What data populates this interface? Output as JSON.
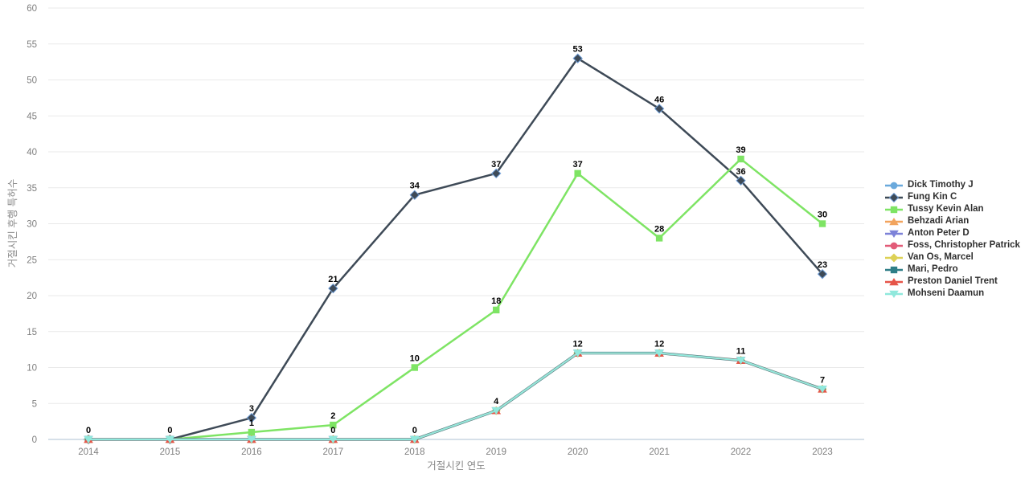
{
  "chart_data": {
    "type": "line",
    "title": "",
    "xlabel": "거절시킨 연도",
    "ylabel": "거절시킨 후행 특허수",
    "x": [
      2014,
      2015,
      2016,
      2017,
      2018,
      2019,
      2020,
      2021,
      2022,
      2023
    ],
    "ylim": [
      0,
      60
    ],
    "ytick_step": 5,
    "grid": true,
    "legend_position": "right",
    "series": [
      {
        "name": "Dick Timothy J",
        "color": "#6aa9dc",
        "marker": "circle",
        "values": [
          0,
          0,
          0,
          0,
          0,
          4,
          12,
          12,
          11,
          7
        ]
      },
      {
        "name": "Fung Kin C",
        "color": "#3e4a57",
        "marker": "diamond",
        "marker_stroke": "#6f9ed8",
        "values": [
          0,
          0,
          3,
          21,
          34,
          37,
          53,
          46,
          36,
          23
        ]
      },
      {
        "name": "Tussy Kevin Alan",
        "color": "#7ee464",
        "marker": "square",
        "values": [
          0,
          0,
          1,
          2,
          10,
          18,
          37,
          28,
          39,
          30
        ]
      },
      {
        "name": "Behzadi Arian",
        "color": "#f2a45e",
        "marker": "triangle-up",
        "values": [
          0,
          0,
          0,
          0,
          0,
          4,
          12,
          12,
          11,
          7
        ]
      },
      {
        "name": "Anton Peter D",
        "color": "#7d82d8",
        "marker": "triangle-down",
        "values": [
          0,
          0,
          0,
          0,
          0,
          4,
          12,
          12,
          11,
          7
        ]
      },
      {
        "name": "Foss, Christopher Patrick",
        "color": "#e25b78",
        "marker": "circle",
        "values": [
          0,
          0,
          0,
          0,
          0,
          4,
          12,
          12,
          11,
          7
        ]
      },
      {
        "name": "Van Os, Marcel",
        "color": "#ddd155",
        "marker": "diamond",
        "values": [
          0,
          0,
          0,
          0,
          0,
          4,
          12,
          12,
          11,
          7
        ]
      },
      {
        "name": "Mari, Pedro",
        "color": "#2e7e87",
        "marker": "square",
        "line_width": 3.4,
        "values": [
          0,
          0,
          0,
          0,
          0,
          4,
          12,
          12,
          11,
          7
        ]
      },
      {
        "name": "Preston Daniel Trent",
        "color": "#e65549",
        "marker": "triangle-up",
        "values": [
          0,
          0,
          0,
          0,
          0,
          4,
          12,
          12,
          11,
          7
        ]
      },
      {
        "name": "Mohseni Daamun",
        "color": "#90e8dc",
        "marker": "triangle-down",
        "line_width": 2.2,
        "values": [
          0,
          0,
          0,
          0,
          0,
          4,
          12,
          12,
          11,
          7
        ]
      }
    ],
    "point_labels": [
      {
        "x": 2014,
        "text": "0",
        "series": "Mohseni Daamun"
      },
      {
        "x": 2015,
        "text": "0",
        "series": "Mohseni Daamun"
      },
      {
        "x": 2016,
        "text": "3",
        "series": "Fung Kin C"
      },
      {
        "x": 2016,
        "text": "1",
        "series": "Tussy Kevin Alan"
      },
      {
        "x": 2017,
        "text": "21",
        "series": "Fung Kin C"
      },
      {
        "x": 2017,
        "text": "2",
        "series": "Tussy Kevin Alan"
      },
      {
        "x": 2017,
        "text": "0",
        "series": "Mohseni Daamun"
      },
      {
        "x": 2018,
        "text": "34",
        "series": "Fung Kin C"
      },
      {
        "x": 2018,
        "text": "10",
        "series": "Tussy Kevin Alan"
      },
      {
        "x": 2018,
        "text": "0",
        "series": "Mohseni Daamun"
      },
      {
        "x": 2019,
        "text": "37",
        "series": "Fung Kin C"
      },
      {
        "x": 2019,
        "text": "18",
        "series": "Tussy Kevin Alan"
      },
      {
        "x": 2019,
        "text": "4",
        "series": "Mohseni Daamun"
      },
      {
        "x": 2020,
        "text": "53",
        "series": "Fung Kin C"
      },
      {
        "x": 2020,
        "text": "37",
        "series": "Tussy Kevin Alan"
      },
      {
        "x": 2020,
        "text": "12",
        "series": "Mohseni Daamun"
      },
      {
        "x": 2021,
        "text": "46",
        "series": "Fung Kin C"
      },
      {
        "x": 2021,
        "text": "28",
        "series": "Tussy Kevin Alan"
      },
      {
        "x": 2021,
        "text": "12",
        "series": "Mohseni Daamun"
      },
      {
        "x": 2022,
        "text": "36",
        "series": "Fung Kin C"
      },
      {
        "x": 2022,
        "text": "39",
        "series": "Tussy Kevin Alan"
      },
      {
        "x": 2022,
        "text": "11",
        "series": "Mohseni Daamun"
      },
      {
        "x": 2023,
        "text": "23",
        "series": "Fung Kin C"
      },
      {
        "x": 2023,
        "text": "30",
        "series": "Tussy Kevin Alan"
      },
      {
        "x": 2023,
        "text": "7",
        "series": "Mohseni Daamun"
      }
    ]
  },
  "colors": {
    "background": "#ffffff",
    "grid": "#e9e9e9",
    "zero_axis": "#c9d5e2",
    "tick_text": "#7f7f7f",
    "axis_title_text": "#8a8a8a",
    "point_label_text": "#000000",
    "legend_text": "#2f2f2f"
  }
}
